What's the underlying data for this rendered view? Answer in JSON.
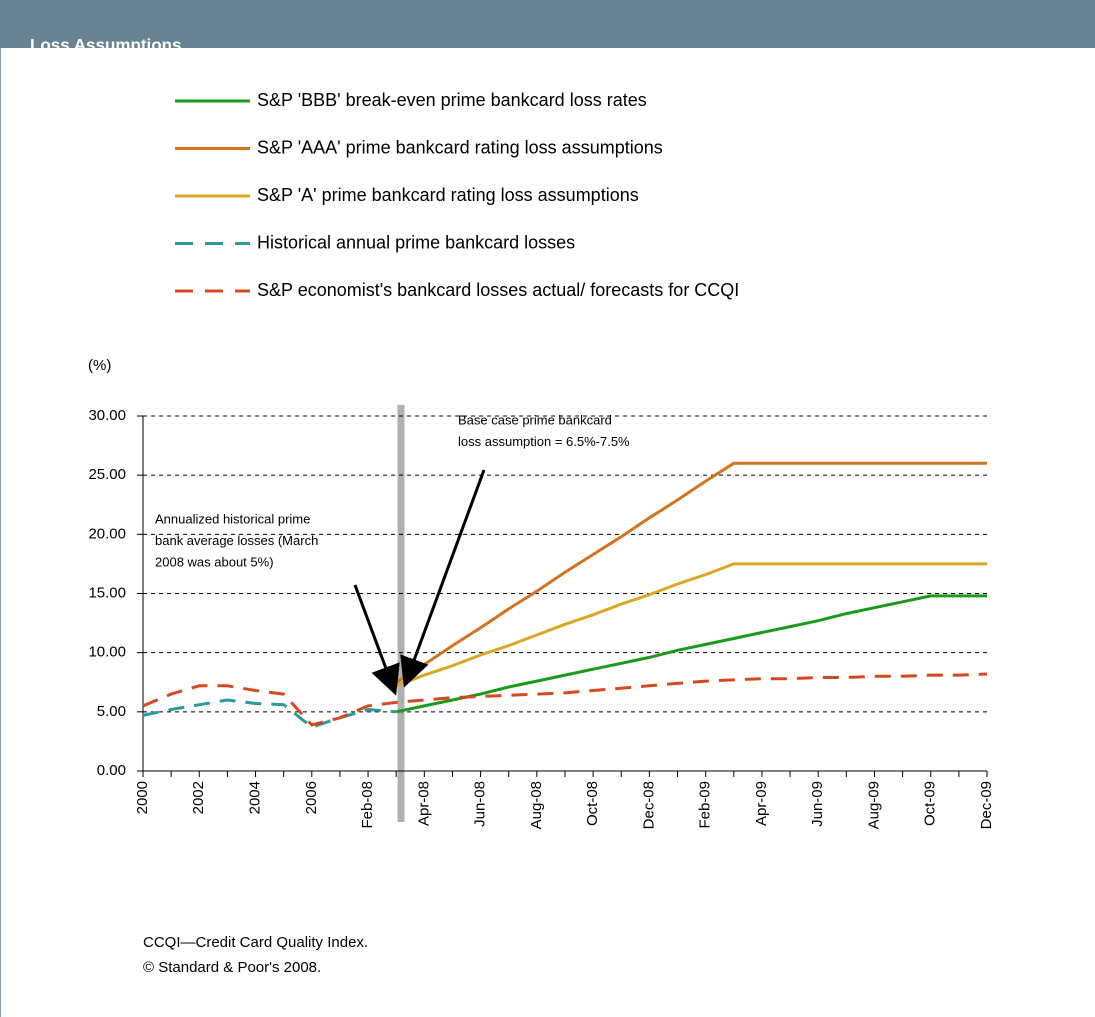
{
  "header": {
    "title": "Loss Assumptions"
  },
  "chart_data": {
    "type": "line",
    "y_label": "(%)",
    "categories": [
      "2000",
      null,
      "2002",
      null,
      "2004",
      null,
      "2006",
      null,
      "Feb-08",
      null,
      "Apr-08",
      null,
      "Jun-08",
      null,
      "Aug-08",
      null,
      "Oct-08",
      null,
      "Dec-08",
      null,
      "Feb-09",
      null,
      "Apr-09",
      null,
      "Jun-09",
      null,
      "Aug-09",
      null,
      "Oct-09",
      null,
      "Dec-09"
    ],
    "ylim": [
      0,
      30
    ],
    "yticks": [
      {
        "value": 0,
        "label": "0.00"
      },
      {
        "value": 5,
        "label": "5.00"
      },
      {
        "value": 10,
        "label": "10.00"
      },
      {
        "value": 15,
        "label": "15.00"
      },
      {
        "value": 20,
        "label": "20.00"
      },
      {
        "value": 25,
        "label": "25.00"
      },
      {
        "value": 30,
        "label": "30.00"
      }
    ],
    "grid": true,
    "series": [
      {
        "name": "S&P 'BBB' break-even prime bankcard loss rates",
        "color": "#1a9a1a",
        "style": "solid",
        "values": [
          null,
          null,
          null,
          null,
          null,
          null,
          null,
          null,
          null,
          5.0,
          5.5,
          6.0,
          6.5,
          7.1,
          7.6,
          8.1,
          8.6,
          9.1,
          9.6,
          10.2,
          10.7,
          11.2,
          11.7,
          12.2,
          12.7,
          13.3,
          13.8,
          14.3,
          14.8,
          14.8,
          14.8
        ]
      },
      {
        "name": "S&P 'AAA' prime bankcard rating loss assumptions",
        "color": "#d2741e",
        "style": "solid",
        "values": [
          null,
          null,
          null,
          null,
          null,
          null,
          null,
          null,
          null,
          7.5,
          9.0,
          10.6,
          12.1,
          13.7,
          15.2,
          16.8,
          18.3,
          19.8,
          21.4,
          22.9,
          24.5,
          26.0,
          26.0,
          26.0,
          26.0,
          26.0,
          26.0,
          26.0,
          26.0,
          26.0,
          26.0
        ]
      },
      {
        "name": "S&P 'A' prime bankcard rating loss assumptions",
        "color": "#dba823",
        "style": "solid",
        "values": [
          null,
          null,
          null,
          null,
          null,
          null,
          null,
          null,
          null,
          7.2,
          8.1,
          8.9,
          9.8,
          10.6,
          11.5,
          12.4,
          13.2,
          14.1,
          14.9,
          15.8,
          16.6,
          17.5,
          17.5,
          17.5,
          17.5,
          17.5,
          17.5,
          17.5,
          17.5,
          17.5,
          17.5
        ]
      },
      {
        "name": "Historical annual prime bankcard losses",
        "color": "#2a9a9a",
        "style": "dashed",
        "values": [
          4.7,
          5.2,
          5.6,
          6.0,
          5.7,
          5.6,
          3.7,
          4.5,
          5.2,
          5.0,
          null,
          null,
          null,
          null,
          null,
          null,
          null,
          null,
          null,
          null,
          null,
          null,
          null,
          null,
          null,
          null,
          null,
          null,
          null,
          null,
          null
        ]
      },
      {
        "name": "S&P economist's bankcard losses actual/ forecasts for CCQI",
        "color": "#d24a1e",
        "style": "dashed",
        "values": [
          5.5,
          6.5,
          7.2,
          7.2,
          6.8,
          6.5,
          3.9,
          4.5,
          5.5,
          5.8,
          6.0,
          6.2,
          6.3,
          6.4,
          6.5,
          6.6,
          6.8,
          7.0,
          7.2,
          7.4,
          7.6,
          7.7,
          7.8,
          7.8,
          7.9,
          7.9,
          8.0,
          8.0,
          8.1,
          8.1,
          8.2
        ]
      }
    ],
    "annotations": [
      {
        "lines": [
          "Base case prime bankcard",
          "loss assumption = 6.5%-7.5%"
        ]
      },
      {
        "lines": [
          "Annualized historical prime",
          "bank average losses (March",
          "2008 was about 5%)"
        ]
      }
    ]
  },
  "footnotes": [
    "CCQI—Credit Card Quality Index.",
    "© Standard & Poor's 2008."
  ]
}
